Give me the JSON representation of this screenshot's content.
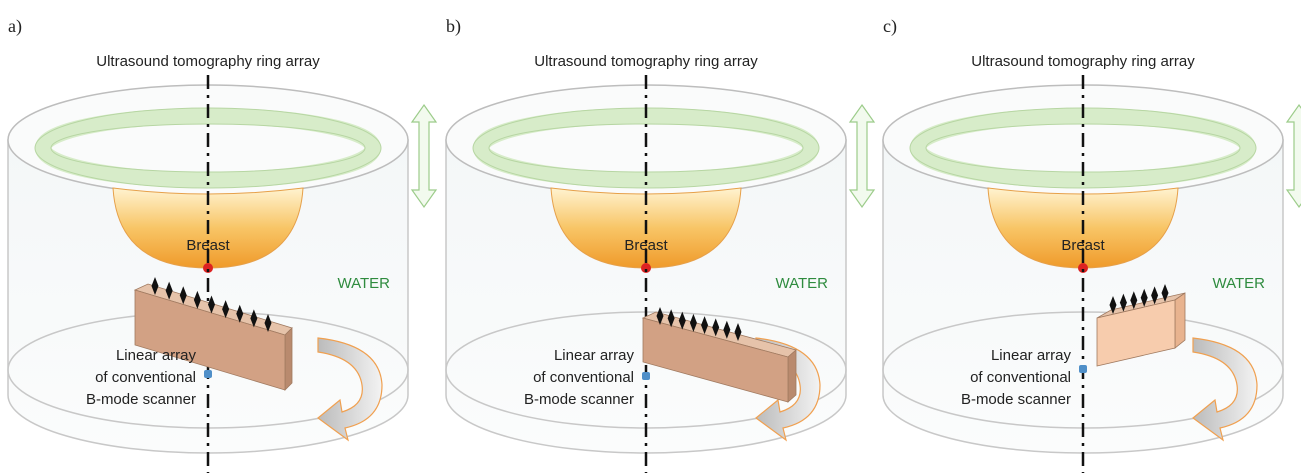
{
  "panels": [
    {
      "label": "a)",
      "title": "Ultrasound tomography ring array",
      "breast": "Breast",
      "water": "WATER",
      "probe_label": [
        "Linear array",
        "of conventional",
        "B-mode scanner"
      ]
    },
    {
      "label": "b)",
      "title": "Ultrasound tomography ring array",
      "breast": "Breast",
      "water": "WATER",
      "probe_label": [
        "Linear array",
        "of conventional",
        "B-mode scanner"
      ]
    },
    {
      "label": "c)",
      "title": "Ultrasound tomography ring array",
      "breast": "Breast",
      "water": "WATER",
      "probe_label": [
        "Linear array",
        "of conventional",
        "B-mode scanner"
      ]
    }
  ]
}
